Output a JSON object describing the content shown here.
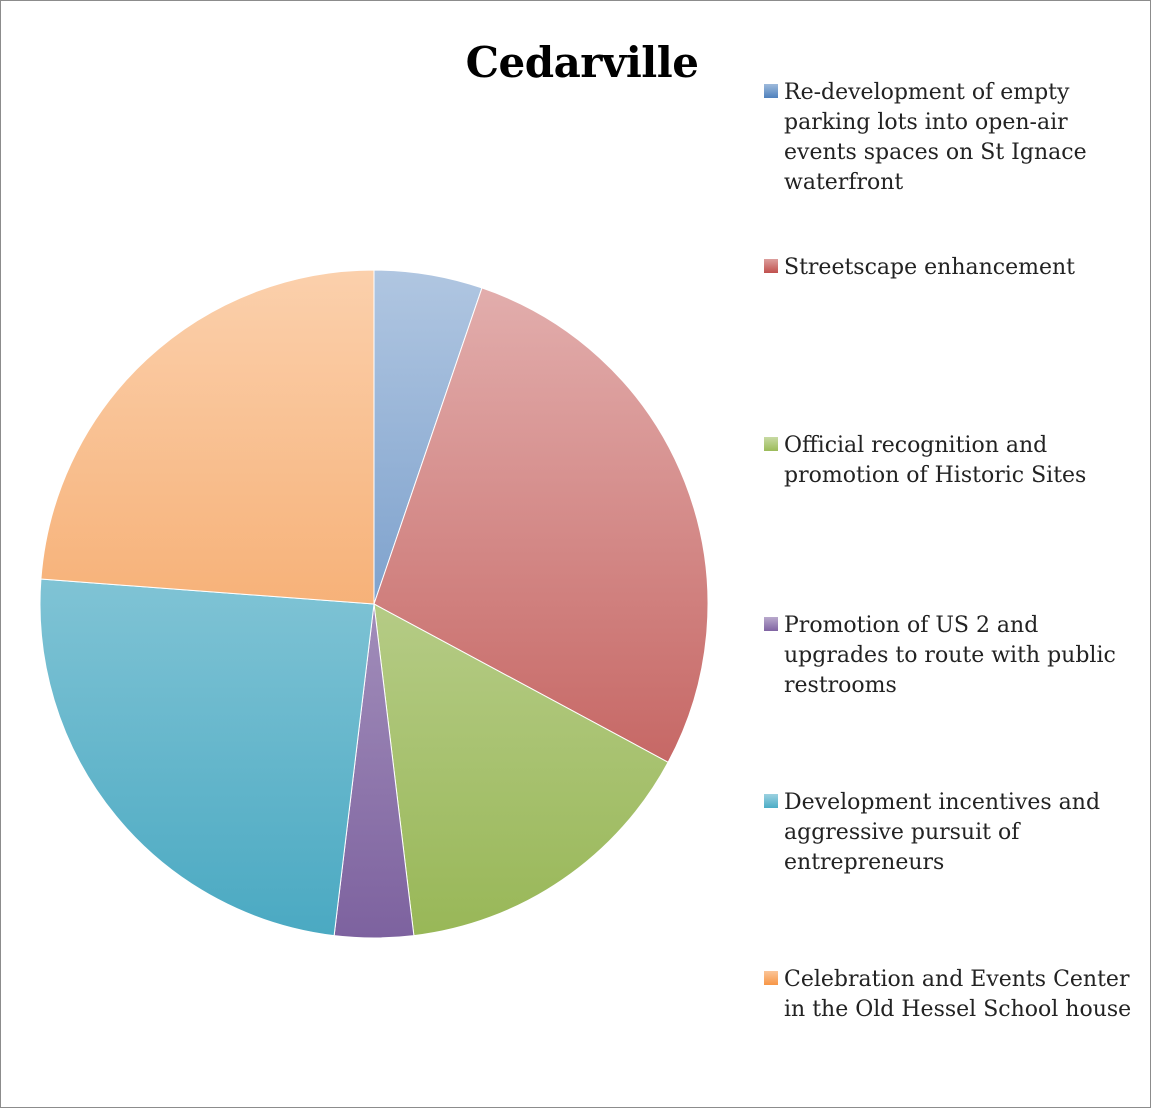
{
  "chart_data": {
    "type": "pie",
    "title": "Cedarville",
    "categories": [
      "Re-development of empty parking lots into open-air events spaces on St Ignace waterfront",
      "Streetscape enhancement",
      "Official recognition and promotion of Historic Sites",
      "Promotion of US 2 and upgrades to route with public restrooms",
      "Development incentives and aggressive pursuit of entrepreneurs",
      "Celebration and Events Center in the Old Hessel School house"
    ],
    "values": [
      5.5,
      29.0,
      16.0,
      4.0,
      25.5,
      25.0
    ],
    "colors": [
      "#4f81bd",
      "#c0504d",
      "#9bbb59",
      "#8064a2",
      "#4bacc6",
      "#f79646"
    ],
    "legend_position": "right"
  }
}
